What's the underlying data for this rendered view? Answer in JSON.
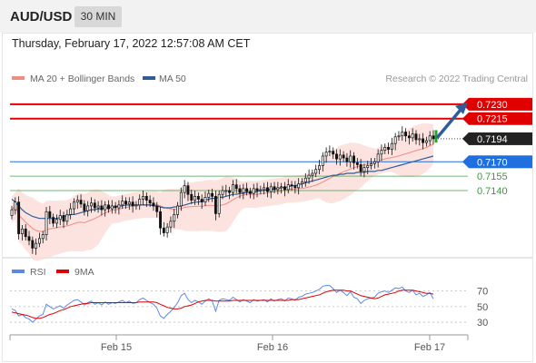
{
  "header": {
    "symbol": "AUD/USD",
    "timeframe": "30 MIN",
    "datetime": "Thursday, February 17, 2022 12:57:08 AM CET"
  },
  "legend": {
    "bollinger_label": "MA 20 + Bollinger Bands",
    "ma50_label": "MA 50",
    "source": "Research © 2022 Trading Central",
    "bollinger_color": "#f28b82",
    "ma50_color": "#2e5d9a"
  },
  "chart_data": [
    {
      "type": "candlestick",
      "x_labels": [
        "Feb 15",
        "Feb 16",
        "Feb 17"
      ],
      "y_range": [
        0.707,
        0.7245
      ],
      "levels": [
        {
          "value": 0.723,
          "label": "0.7230",
          "kind": "resistance",
          "color": "#e00000"
        },
        {
          "value": 0.7215,
          "label": "0.7215",
          "kind": "resistance",
          "color": "#e00000"
        },
        {
          "value": 0.7194,
          "label": "0.7194",
          "kind": "last-price",
          "color": "#222222"
        },
        {
          "value": 0.717,
          "label": "0.7170",
          "kind": "pivot",
          "color": "#1f6fe0"
        },
        {
          "value": 0.7155,
          "label": "0.7155",
          "kind": "support",
          "color": "#3a9a3a"
        },
        {
          "value": 0.714,
          "label": "0.7140",
          "kind": "support",
          "color": "#3a9a3a"
        }
      ],
      "closes": [
        0.712,
        0.7128,
        0.7095,
        0.71,
        0.7092,
        0.7088,
        0.708,
        0.7085,
        0.709,
        0.7094,
        0.7118,
        0.7112,
        0.7106,
        0.711,
        0.7114,
        0.7108,
        0.7115,
        0.7121,
        0.7128,
        0.713,
        0.7126,
        0.7119,
        0.7124,
        0.7127,
        0.7122,
        0.7124,
        0.712,
        0.7125,
        0.7121,
        0.7124,
        0.7122,
        0.7125,
        0.7129,
        0.7126,
        0.7128,
        0.7124,
        0.7125,
        0.7131,
        0.7134,
        0.713,
        0.7127,
        0.7124,
        0.7118,
        0.7101,
        0.7096,
        0.7102,
        0.7108,
        0.7115,
        0.7124,
        0.7138,
        0.7145,
        0.7136,
        0.713,
        0.7134,
        0.7131,
        0.7128,
        0.7133,
        0.7137,
        0.7134,
        0.7116,
        0.7136,
        0.714,
        0.714,
        0.7138,
        0.7146,
        0.7142,
        0.7138,
        0.7142,
        0.7139,
        0.7137,
        0.7142,
        0.714,
        0.7141,
        0.7143,
        0.7139,
        0.7144,
        0.7141,
        0.7143,
        0.7144,
        0.7141,
        0.7146,
        0.7145,
        0.7143,
        0.7147,
        0.7149,
        0.7153,
        0.7156,
        0.7158,
        0.7162,
        0.7166,
        0.7176,
        0.718,
        0.7181,
        0.7178,
        0.7173,
        0.7177,
        0.7174,
        0.717,
        0.7176,
        0.7169,
        0.7167,
        0.716,
        0.7164,
        0.7166,
        0.7168,
        0.717,
        0.7178,
        0.7182,
        0.7185,
        0.7183,
        0.7189,
        0.7196,
        0.7197,
        0.7201,
        0.7197,
        0.7195,
        0.7199,
        0.7193,
        0.7194,
        0.719,
        0.7192,
        0.7197,
        0.7194
      ],
      "ma50": [
        0.7131,
        0.7128,
        0.7124,
        0.712,
        0.7117,
        0.7115,
        0.7113,
        0.7112,
        0.7111,
        0.7111,
        0.7111,
        0.7111,
        0.7111,
        0.7111,
        0.7112,
        0.7113,
        0.7114,
        0.7115,
        0.7115,
        0.7116,
        0.7117,
        0.7118,
        0.7119,
        0.712,
        0.712,
        0.7121,
        0.7121,
        0.7122,
        0.7122,
        0.7123,
        0.7123,
        0.7124,
        0.7124,
        0.7125,
        0.7125,
        0.7125,
        0.7125,
        0.7125,
        0.7125,
        0.7125,
        0.7125,
        0.7124,
        0.7124,
        0.7123,
        0.7122,
        0.7122,
        0.7122,
        0.7123,
        0.7123,
        0.7124,
        0.7125,
        0.7126,
        0.7127,
        0.7128,
        0.7128,
        0.7129,
        0.713,
        0.7131,
        0.7132,
        0.7132,
        0.7133,
        0.7133,
        0.7134,
        0.7135,
        0.7136,
        0.7136,
        0.7137,
        0.7137,
        0.7138,
        0.7138,
        0.7138,
        0.7139,
        0.714,
        0.714,
        0.7141,
        0.7141,
        0.7142,
        0.7142,
        0.7143,
        0.7143,
        0.7144,
        0.7145,
        0.7145,
        0.7146,
        0.7147,
        0.7148,
        0.7149,
        0.715,
        0.7151,
        0.7152,
        0.7153,
        0.7154,
        0.7155,
        0.7156,
        0.7156,
        0.7157,
        0.7157,
        0.7158,
        0.7158,
        0.7158,
        0.7159,
        0.7159,
        0.7159,
        0.716,
        0.716,
        0.716,
        0.7161,
        0.7161,
        0.7162,
        0.7163,
        0.7164,
        0.7165,
        0.7166,
        0.7167,
        0.7168,
        0.7169,
        0.717,
        0.7171,
        0.7172,
        0.7173,
        0.7174,
        0.7175,
        0.7176
      ],
      "projection": {
        "from": 0.7196,
        "to": 0.7229
      }
    },
    {
      "type": "line",
      "indicator": "RSI",
      "series": [
        {
          "name": "RSI",
          "color": "#5b8ae6"
        },
        {
          "name": "9MA",
          "color": "#e00000"
        }
      ],
      "y_ticks": [
        70,
        50,
        30
      ],
      "y_range": [
        15,
        80
      ],
      "rsi": [
        47,
        45,
        38,
        40,
        36,
        34,
        30,
        34,
        38,
        40,
        53,
        50,
        47,
        49,
        51,
        48,
        52,
        55,
        58,
        59,
        56,
        52,
        55,
        57,
        53,
        55,
        52,
        56,
        53,
        55,
        54,
        56,
        58,
        55,
        57,
        54,
        55,
        59,
        61,
        58,
        55,
        53,
        48,
        38,
        35,
        40,
        44,
        49,
        55,
        64,
        67,
        59,
        55,
        58,
        56,
        53,
        57,
        60,
        57,
        44,
        58,
        60,
        59,
        58,
        62,
        59,
        56,
        59,
        57,
        55,
        59,
        57,
        58,
        59,
        56,
        60,
        57,
        59,
        60,
        57,
        61,
        60,
        58,
        62,
        63,
        66,
        67,
        68,
        70,
        72,
        76,
        77,
        77,
        73,
        68,
        71,
        68,
        64,
        69,
        62,
        60,
        54,
        58,
        60,
        61,
        62,
        67,
        69,
        70,
        68,
        71,
        74,
        73,
        75,
        70,
        68,
        71,
        65,
        67,
        63,
        65,
        68,
        60
      ],
      "ma9": [
        43,
        42,
        41,
        40,
        39,
        38,
        36,
        35,
        35,
        36,
        38,
        40,
        41,
        43,
        45,
        46,
        48,
        50,
        51,
        52,
        53,
        54,
        54,
        55,
        55,
        55,
        55,
        55,
        55,
        55,
        55,
        55,
        55,
        55,
        55,
        55,
        55,
        56,
        56,
        56,
        56,
        56,
        55,
        53,
        51,
        49,
        48,
        47,
        47,
        48,
        50,
        51,
        52,
        54,
        56,
        57,
        58,
        58,
        58,
        57,
        57,
        57,
        57,
        57,
        58,
        58,
        58,
        58,
        58,
        58,
        58,
        58,
        58,
        58,
        58,
        58,
        58,
        58,
        58,
        58,
        58,
        59,
        59,
        59,
        60,
        61,
        62,
        63,
        64,
        65,
        67,
        69,
        70,
        71,
        71,
        71,
        71,
        70,
        70,
        68,
        66,
        64,
        63,
        62,
        61,
        60,
        61,
        63,
        65,
        66,
        67,
        68,
        70,
        71,
        71,
        71,
        71,
        70,
        69,
        68,
        67,
        67,
        66
      ],
      "legend_rsi": "RSI",
      "legend_ma9": "9MA"
    }
  ]
}
